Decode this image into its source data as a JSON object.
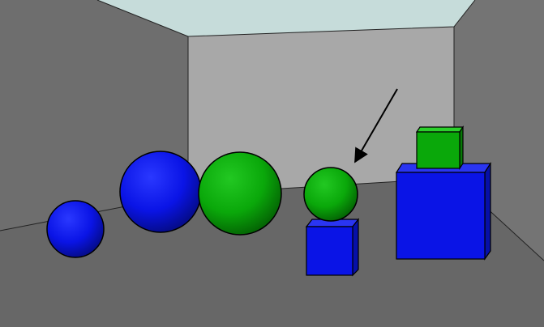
{
  "scene": {
    "colors": {
      "ceiling": "#c6dcda",
      "back_wall": "#a7a7a7",
      "left_wall": "#6e6e6e",
      "right_wall": "#747474",
      "floor": "#676767",
      "outline": "#000000",
      "blue": "#0a14e6",
      "green": "#0aa80a"
    },
    "objects": [
      "small-blue-sphere",
      "large-blue-sphere",
      "large-green-sphere",
      "small-green-sphere",
      "small-blue-cube",
      "large-blue-cube",
      "small-green-cube"
    ],
    "pointer": {
      "target": "small-green-sphere",
      "icon": "arrow-icon"
    }
  }
}
